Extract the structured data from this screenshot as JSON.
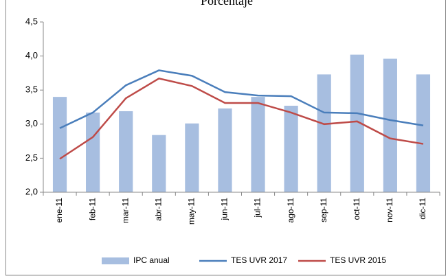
{
  "chart_data": {
    "type": "bar_line",
    "title": "Porcentaje",
    "categories": [
      "ene-11",
      "feb-11",
      "mar-11",
      "abr-11",
      "may-11",
      "jun-11",
      "jul-11",
      "ago-11",
      "sep-11",
      "oct-11",
      "nov-11",
      "dic-11"
    ],
    "series": [
      {
        "name": "IPC anual",
        "type": "bar",
        "color": "#a7bee0",
        "values": [
          3.4,
          3.17,
          3.19,
          2.84,
          3.01,
          3.23,
          3.4,
          3.27,
          3.73,
          4.02,
          3.96,
          3.73
        ]
      },
      {
        "name": "TES UVR 2017",
        "type": "line",
        "color": "#4a7ebb",
        "values": [
          2.94,
          3.17,
          3.57,
          3.79,
          3.71,
          3.47,
          3.42,
          3.41,
          3.17,
          3.16,
          3.06,
          2.98
        ]
      },
      {
        "name": "TES UVR 2015",
        "type": "line",
        "color": "#be4b48",
        "values": [
          2.49,
          2.81,
          3.38,
          3.67,
          3.56,
          3.31,
          3.31,
          3.17,
          3.0,
          3.04,
          2.79,
          2.71
        ]
      }
    ],
    "ylim": [
      2.0,
      4.5
    ],
    "yticks": [
      {
        "value": 2.0,
        "label": "2,0"
      },
      {
        "value": 2.5,
        "label": "2,5"
      },
      {
        "value": 3.0,
        "label": "3,0"
      },
      {
        "value": 3.5,
        "label": "3,5"
      },
      {
        "value": 4.0,
        "label": "4,0"
      },
      {
        "value": 4.5,
        "label": "4,5"
      }
    ],
    "grid": false,
    "legend": "bottom"
  }
}
